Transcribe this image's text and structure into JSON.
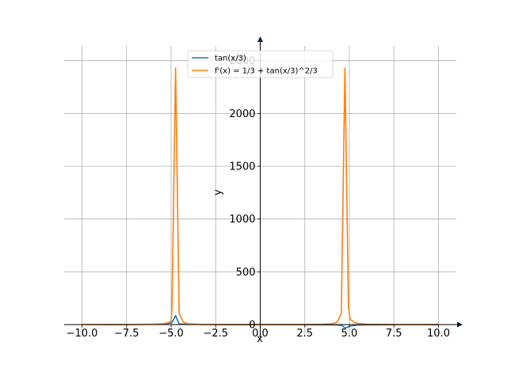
{
  "chart_data": {
    "type": "line",
    "xlabel": "x",
    "ylabel": "y",
    "xlim": [
      -11.0,
      11.0
    ],
    "ylim": [
      -120,
      2640
    ],
    "grid": true,
    "legend_position": "top-center",
    "x_ticks": [
      -10.0,
      -7.5,
      -5.0,
      -2.5,
      0.0,
      2.5,
      5.0,
      7.5,
      10.0
    ],
    "x_tick_labels": [
      "−10.0",
      "−7.5",
      "−5.0",
      "−2.5",
      "0.0",
      "2.5",
      "5.0",
      "7.5",
      "10.0"
    ],
    "y_ticks": [
      0,
      500,
      1000,
      1500,
      2000,
      2500
    ],
    "y_tick_labels": [
      "0",
      "500",
      "1000",
      "1500",
      "2000",
      "2500"
    ],
    "series": [
      {
        "name": "tan(x/3)",
        "color": "#1f77b4",
        "x": [
          -10.0,
          -9.0,
          -8.0,
          -7.0,
          -6.0,
          -5.5,
          -5.0,
          -4.95,
          -4.75,
          -4.55,
          -4.3,
          -4.0,
          -3.5,
          -3.0,
          -2.0,
          -1.0,
          0.0,
          1.0,
          2.0,
          3.0,
          4.0,
          4.3,
          4.55,
          4.75,
          4.95,
          5.0,
          5.5,
          6.0,
          7.0,
          8.0,
          9.0,
          10.0
        ],
        "y": [
          1.8,
          0.1,
          0.0,
          1.2,
          2.2,
          3.8,
          15.0,
          20.0,
          85.0,
          6.0,
          3.5,
          2.6,
          1.8,
          1.6,
          0.5,
          -0.3,
          0.0,
          0.3,
          -0.5,
          -1.6,
          -2.6,
          -3.5,
          -6.0,
          -30.0,
          -22.0,
          -15.0,
          -3.8,
          -2.2,
          -1.2,
          0.0,
          -0.1,
          -1.8
        ]
      },
      {
        "name": "f'(x) = 1/3 + tan(x/3)^2/3",
        "color": "#ff7f0e",
        "x": [
          -10.0,
          -8.0,
          -7.0,
          -6.0,
          -5.5,
          -5.2,
          -5.0,
          -4.95,
          -4.75,
          -4.55,
          -4.3,
          -4.0,
          -3.5,
          -3.0,
          -2.0,
          0.0,
          2.0,
          3.0,
          3.5,
          4.0,
          4.3,
          4.55,
          4.75,
          4.95,
          5.05,
          5.3,
          5.6,
          6.0,
          7.0,
          8.0,
          10.0
        ],
        "y": [
          1.4,
          0.4,
          1.9,
          3.8,
          8.0,
          16.0,
          30.0,
          160.0,
          2430.0,
          105.0,
          20.0,
          7.0,
          3.2,
          1.9,
          0.6,
          0.33,
          0.6,
          1.9,
          3.2,
          7.0,
          20.0,
          105.0,
          2430.0,
          160.0,
          50.0,
          18.0,
          8.0,
          3.8,
          1.9,
          0.4,
          1.4
        ]
      }
    ]
  }
}
